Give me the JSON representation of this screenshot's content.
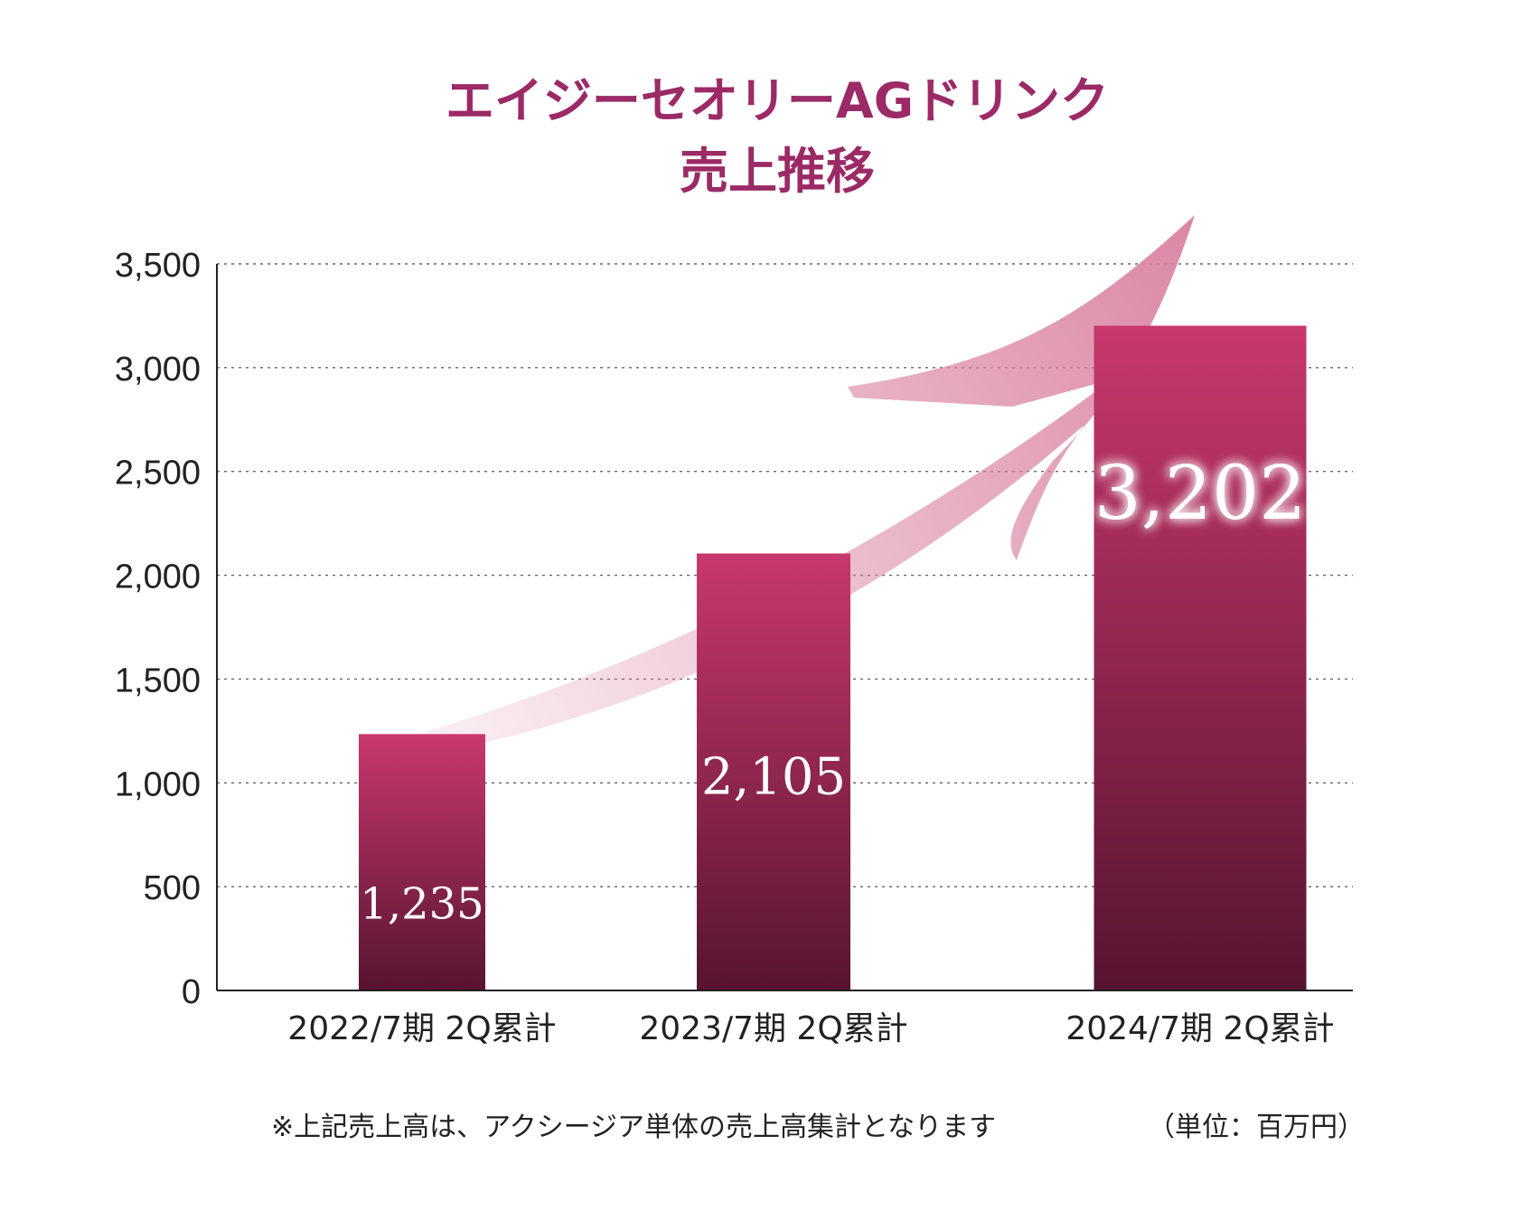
{
  "colors": {
    "title": "#9b2a66",
    "bar_top": "#c8386d",
    "bar_bottom": "#571430",
    "arrow": "#d9809f",
    "grid": "#666666",
    "axis": "#222222"
  },
  "chart_data": {
    "type": "bar",
    "title_lines": [
      "エイジーセオリーAGドリンク",
      "売上推移"
    ],
    "categories": [
      "2022/7期 2Q累計",
      "2023/7期 2Q累計",
      "2024/7期 2Q累計"
    ],
    "values": [
      1235,
      2105,
      3202
    ],
    "value_labels": [
      "1,235",
      "2,105",
      "3,202"
    ],
    "ylim": [
      0,
      3500
    ],
    "yticks": [
      0,
      500,
      1000,
      1500,
      2000,
      2500,
      3000,
      3500
    ],
    "ytick_labels": [
      "0",
      "500",
      "1,000",
      "1,500",
      "2,000",
      "2,500",
      "3,000",
      "3,500"
    ],
    "grid": true,
    "grid_style": "dotted",
    "trend_arrow": true,
    "footnote": "※上記売上高は、アクシージア単体の売上高集計となります",
    "unit_note": "（単位：百万円）"
  }
}
